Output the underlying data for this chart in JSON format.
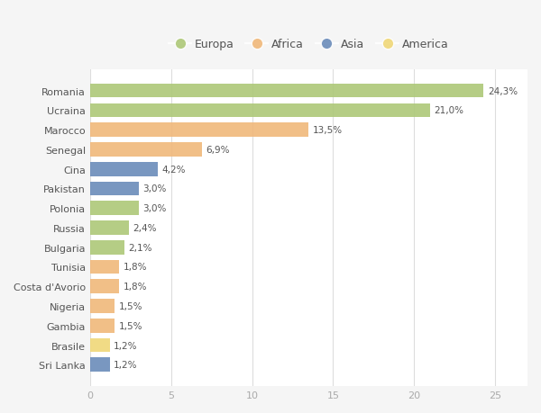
{
  "countries": [
    "Romania",
    "Ucraina",
    "Marocco",
    "Senegal",
    "Cina",
    "Pakistan",
    "Polonia",
    "Russia",
    "Bulgaria",
    "Tunisia",
    "Costa d'Avorio",
    "Nigeria",
    "Gambia",
    "Brasile",
    "Sri Lanka"
  ],
  "values": [
    24.3,
    21.0,
    13.5,
    6.9,
    4.2,
    3.0,
    3.0,
    2.4,
    2.1,
    1.8,
    1.8,
    1.5,
    1.5,
    1.2,
    1.2
  ],
  "labels": [
    "24,3%",
    "21,0%",
    "13,5%",
    "6,9%",
    "4,2%",
    "3,0%",
    "3,0%",
    "2,4%",
    "2,1%",
    "1,8%",
    "1,8%",
    "1,5%",
    "1,5%",
    "1,2%",
    "1,2%"
  ],
  "continents": [
    "Europa",
    "Europa",
    "Africa",
    "Africa",
    "Asia",
    "Asia",
    "Europa",
    "Europa",
    "Europa",
    "Africa",
    "Africa",
    "Africa",
    "Africa",
    "America",
    "Asia"
  ],
  "colors": {
    "Europa": "#adc878",
    "Africa": "#f0b87a",
    "Asia": "#6b8cba",
    "America": "#f0d878"
  },
  "xlim": [
    0,
    27
  ],
  "xticks": [
    0,
    5,
    10,
    15,
    20,
    25
  ],
  "bg_color": "#f5f5f5",
  "plot_bg_color": "#ffffff",
  "grid_color": "#dddddd",
  "label_color": "#555555",
  "tick_color": "#aaaaaa"
}
